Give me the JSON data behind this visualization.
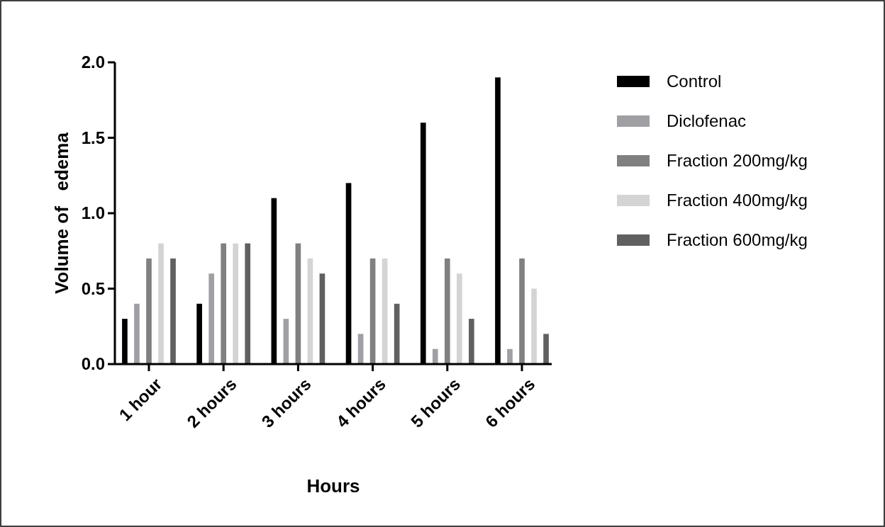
{
  "chart_data": {
    "type": "bar",
    "xlabel": "Hours",
    "ylabel": "Volume of   edema",
    "categories": [
      "1 hour",
      "2 hours",
      "3 hours",
      "4 hours",
      "5 hours",
      "6 hours"
    ],
    "series": [
      {
        "name": "Control",
        "color": "#000000",
        "values": [
          0.3,
          0.4,
          1.1,
          1.2,
          1.6,
          1.9
        ]
      },
      {
        "name": "Diclofenac",
        "color": "#a0a0a4",
        "values": [
          0.4,
          0.6,
          0.3,
          0.2,
          0.1,
          0.1
        ]
      },
      {
        "name": "Fraction 200mg/kg",
        "color": "#808080",
        "values": [
          0.7,
          0.8,
          0.8,
          0.7,
          0.7,
          0.7
        ]
      },
      {
        "name": "Fraction 400mg/kg",
        "color": "#d4d4d4",
        "values": [
          0.8,
          0.8,
          0.7,
          0.7,
          0.6,
          0.5
        ]
      },
      {
        "name": "Fraction 600mg/kg",
        "color": "#606060",
        "values": [
          0.7,
          0.8,
          0.6,
          0.4,
          0.3,
          0.2
        ]
      }
    ],
    "ylim": [
      0,
      2
    ],
    "yticks": [
      {
        "value": 0,
        "label": "0.0"
      },
      {
        "value": 0.5,
        "label": "0.5"
      },
      {
        "value": 1,
        "label": "1.0"
      },
      {
        "value": 1.5,
        "label": "1.5"
      },
      {
        "value": 2,
        "label": "2.0"
      }
    ],
    "grid": false,
    "legend": "right"
  }
}
